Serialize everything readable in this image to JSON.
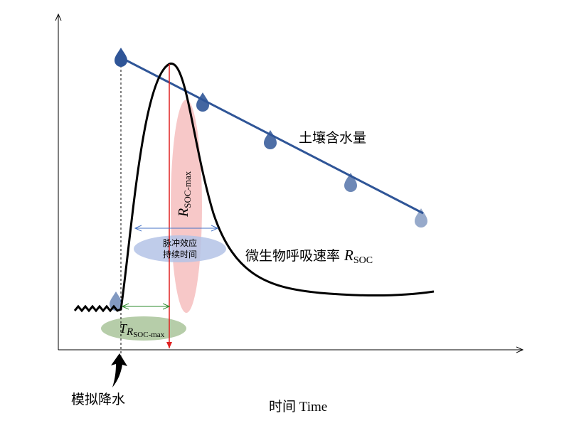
{
  "labels": {
    "soil_moisture": "土壤含水量",
    "respiration": {
      "text": "微生物呼吸速率 ",
      "var": "R",
      "sub": "SOC"
    },
    "pulse_duration": [
      "脉冲效应",
      "持续时间"
    ],
    "time_to_peak": {
      "var": "T",
      "var2": "R",
      "sub": "SOC-max"
    },
    "peak_rate": {
      "var": "R",
      "sub": "SOC-max"
    },
    "precipitation": "模拟降水",
    "x_axis": "时间 Time"
  }
}
